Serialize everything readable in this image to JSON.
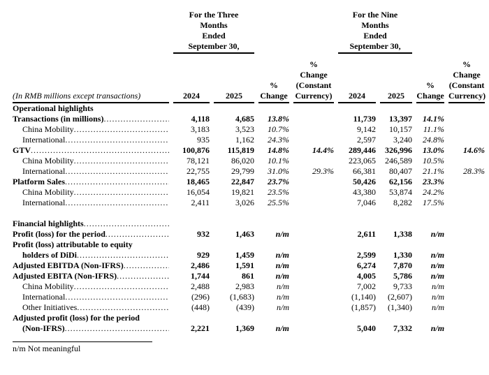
{
  "table": {
    "stub_header": "(In RMB millions except transactions)",
    "groups": [
      {
        "lines": [
          "For the Three",
          "Months",
          "Ended",
          "September 30,"
        ]
      },
      {
        "lines": [
          "For the Nine",
          "Months",
          "Ended",
          "September 30,"
        ]
      }
    ],
    "columns": [
      {
        "lines": [
          "2024"
        ]
      },
      {
        "lines": [
          "2025"
        ]
      },
      {
        "lines": [
          "%",
          "Change"
        ]
      },
      {
        "lines": [
          "%",
          "Change",
          "(Constant",
          "Currency)"
        ]
      },
      {
        "lines": [
          "2024"
        ]
      },
      {
        "lines": [
          "2025"
        ]
      },
      {
        "lines": [
          "%",
          "Change"
        ]
      },
      {
        "lines": [
          "%",
          "Change",
          "(Constant",
          "Currency)"
        ]
      }
    ],
    "rows": [
      {
        "label": "Operational highlights",
        "bold": true,
        "dots": false,
        "values": [
          "",
          "",
          "",
          "",
          "",
          "",
          "",
          ""
        ]
      },
      {
        "label": "Transactions (in millions)",
        "bold": true,
        "dots": true,
        "values": [
          "4,118",
          "4,685",
          "13.8%",
          "",
          "11,739",
          "13,397",
          "14.1%",
          ""
        ]
      },
      {
        "label": "China Mobility",
        "indent": true,
        "dots": true,
        "values": [
          "3,183",
          "3,523",
          "10.7%",
          "",
          "9,142",
          "10,157",
          "11.1%",
          ""
        ]
      },
      {
        "label": "International",
        "indent": true,
        "dots": true,
        "values": [
          "935",
          "1,162",
          "24.3%",
          "",
          "2,597",
          "3,240",
          "24.8%",
          ""
        ]
      },
      {
        "label": "GTV",
        "bold": true,
        "dots": true,
        "values": [
          "100,876",
          "115,819",
          "14.8%",
          "14.4%",
          "289,446",
          "326,996",
          "13.0%",
          "14.6%"
        ]
      },
      {
        "label": "China Mobility",
        "indent": true,
        "dots": true,
        "values": [
          "78,121",
          "86,020",
          "10.1%",
          "",
          "223,065",
          "246,589",
          "10.5%",
          ""
        ]
      },
      {
        "label": "International",
        "indent": true,
        "dots": true,
        "values": [
          "22,755",
          "29,799",
          "31.0%",
          "29.3%",
          "66,381",
          "80,407",
          "21.1%",
          "28.3%"
        ]
      },
      {
        "label": "Platform Sales",
        "bold": true,
        "dots": true,
        "values": [
          "18,465",
          "22,847",
          "23.7%",
          "",
          "50,426",
          "62,156",
          "23.3%",
          ""
        ]
      },
      {
        "label": "China Mobility",
        "indent": true,
        "dots": true,
        "values": [
          "16,054",
          "19,821",
          "23.5%",
          "",
          "43,380",
          "53,874",
          "24.2%",
          ""
        ]
      },
      {
        "label": "International",
        "indent": true,
        "dots": true,
        "values": [
          "2,411",
          "3,026",
          "25.5%",
          "",
          "7,046",
          "8,282",
          "17.5%",
          ""
        ]
      },
      {
        "type": "spacer"
      },
      {
        "label": "Financial highlights",
        "bold": true,
        "dots": true,
        "values": [
          "",
          "",
          "",
          "",
          "",
          "",
          "",
          ""
        ]
      },
      {
        "label": "Profit (loss) for the period",
        "bold": true,
        "dots": true,
        "values": [
          "932",
          "1,463",
          "n/m",
          "",
          "2,611",
          "1,338",
          "n/m",
          ""
        ]
      },
      {
        "label": "Profit (loss) attributable to equity",
        "bold": true,
        "dots": false,
        "values": [
          "",
          "",
          "",
          "",
          "",
          "",
          "",
          ""
        ]
      },
      {
        "label": "holders of DiDi",
        "bold": true,
        "indent": true,
        "dots": true,
        "values": [
          "929",
          "1,459",
          "n/m",
          "",
          "2,599",
          "1,330",
          "n/m",
          ""
        ]
      },
      {
        "label": "Adjusted EBITDA (Non-IFRS)",
        "bold": true,
        "dots": true,
        "values": [
          "2,486",
          "1,591",
          "n/m",
          "",
          "6,274",
          "7,870",
          "n/m",
          ""
        ]
      },
      {
        "label": "Adjusted EBITA (Non-IFRS)",
        "bold": true,
        "dots": true,
        "values": [
          "1,744",
          "861",
          "n/m",
          "",
          "4,005",
          "5,786",
          "n/m",
          ""
        ]
      },
      {
        "label": "China Mobility",
        "indent": true,
        "dots": true,
        "values": [
          "2,488",
          "2,983",
          "n/m",
          "",
          "7,002",
          "9,733",
          "n/m",
          ""
        ]
      },
      {
        "label": "International",
        "indent": true,
        "dots": true,
        "values": [
          "(296)",
          "(1,683)",
          "n/m",
          "",
          "(1,140)",
          "(2,607)",
          "n/m",
          ""
        ]
      },
      {
        "label": "Other Initiatives",
        "indent": true,
        "dots": true,
        "values": [
          "(448)",
          "(439)",
          "n/m",
          "",
          "(1,857)",
          "(1,340)",
          "n/m",
          ""
        ]
      },
      {
        "label": "Adjusted profit (loss) for the period",
        "bold": true,
        "dots": false,
        "values": [
          "",
          "",
          "",
          "",
          "",
          "",
          "",
          ""
        ]
      },
      {
        "label": "(Non-IFRS)",
        "bold": true,
        "indent": true,
        "dots": true,
        "values": [
          "2,221",
          "1,369",
          "n/m",
          "",
          "5,040",
          "7,332",
          "n/m",
          ""
        ]
      }
    ]
  },
  "footnote": "n/m Not meaningful"
}
